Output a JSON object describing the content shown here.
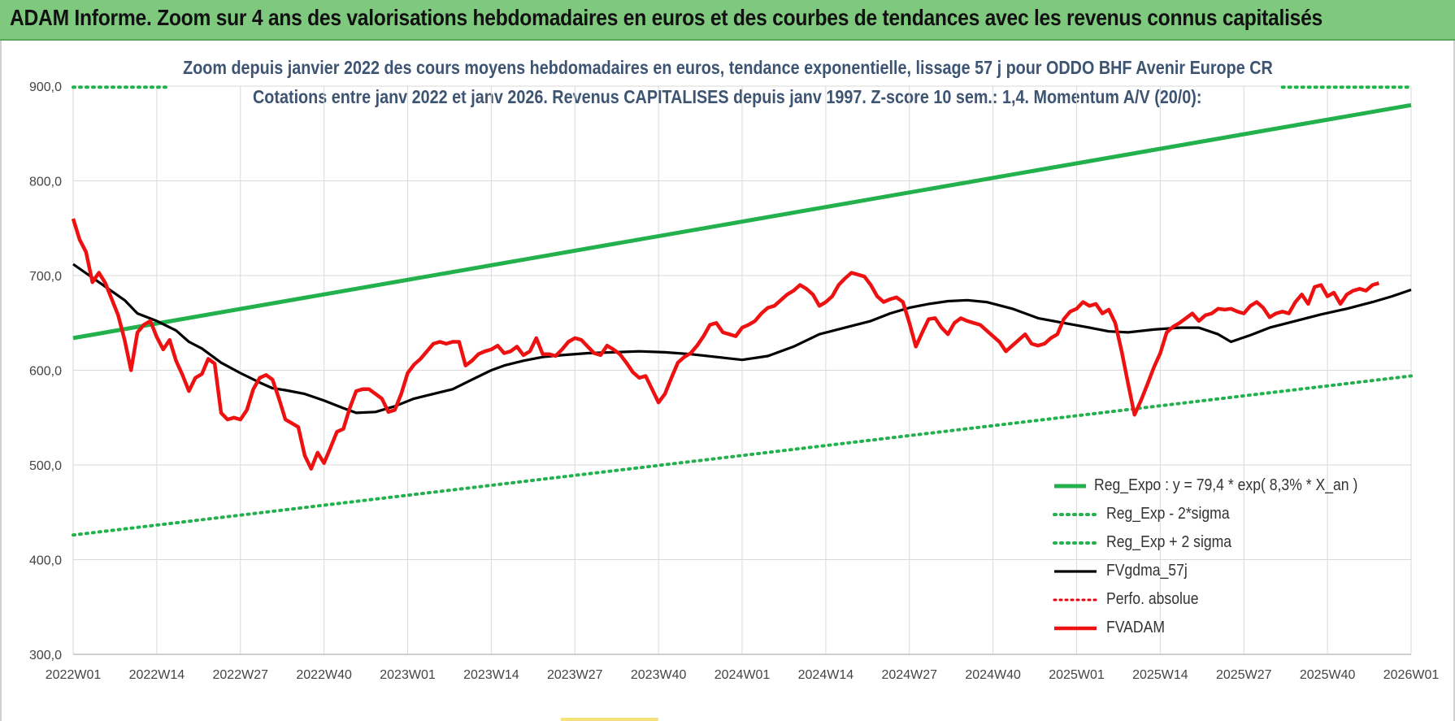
{
  "header": {
    "title": "ADAM Informe. Zoom sur 4 ans des valorisations hebdomadaires en euros et des courbes de tendances avec les revenus connus capitalisés"
  },
  "chart_data": {
    "type": "line",
    "title": "Zoom depuis janvier 2022 des cours moyens hebdomadaires en euros, tendance exponentielle, lissage 57 j pour ODDO BHF Avenir Europe CR",
    "subtitle": "Cotations entre janv 2022 et janv 2026. Revenus CAPITALISES depuis janv 1997. Z-score 10 sem.: 1,4. Momentum A/V (20/0):",
    "xlabel": "",
    "ylabel": "",
    "ylim": [
      300,
      900
    ],
    "yticks": [
      "300,0",
      "400,0",
      "500,0",
      "600,0",
      "700,0",
      "800,0",
      "900,0"
    ],
    "xticks": [
      "2022W01",
      "2022W14",
      "2022W27",
      "2022W40",
      "2023W01",
      "2023W14",
      "2023W27",
      "2023W40",
      "2024W01",
      "2024W14",
      "2024W27",
      "2024W40",
      "2025W01",
      "2025W14",
      "2025W27",
      "2025W40",
      "2026W01"
    ],
    "grid": true,
    "legend_position": "bottom-right",
    "series": [
      {
        "name": "Reg_Expo : y = 79,4 * exp( 8,3% *  X_an )",
        "color": "#22b14c",
        "style": "solid",
        "points": [
          [
            0,
            634
          ],
          [
            208,
            880
          ]
        ]
      },
      {
        "name": "Reg_Exp - 2*sigma",
        "color": "#22b14c",
        "style": "dotted",
        "points": [
          [
            0,
            426
          ],
          [
            208,
            594
          ]
        ]
      },
      {
        "name": "Reg_Exp + 2 sigma",
        "color": "#22b14c",
        "style": "dotted",
        "points": [
          [
            0,
            899
          ],
          [
            15,
            899
          ]
        ],
        "points2": [
          [
            188,
            899
          ],
          [
            208,
            899
          ]
        ]
      },
      {
        "name": "FVgdma_57j",
        "color": "#000000",
        "style": "solid",
        "points": [
          [
            0,
            712
          ],
          [
            4,
            693
          ],
          [
            8,
            674
          ],
          [
            10,
            660
          ],
          [
            13,
            652
          ],
          [
            16,
            642
          ],
          [
            18,
            630
          ],
          [
            20,
            623
          ],
          [
            23,
            608
          ],
          [
            26,
            597
          ],
          [
            29,
            587
          ],
          [
            31,
            581
          ],
          [
            33,
            579
          ],
          [
            36,
            575
          ],
          [
            39,
            568
          ],
          [
            42,
            560
          ],
          [
            44,
            555
          ],
          [
            47,
            556
          ],
          [
            50,
            562
          ],
          [
            53,
            570
          ],
          [
            56,
            575
          ],
          [
            59,
            580
          ],
          [
            62,
            590
          ],
          [
            65,
            600
          ],
          [
            67,
            605
          ],
          [
            70,
            610
          ],
          [
            73,
            614
          ],
          [
            76,
            616
          ],
          [
            80,
            618
          ],
          [
            84,
            619
          ],
          [
            88,
            620
          ],
          [
            92,
            619
          ],
          [
            96,
            617
          ],
          [
            100,
            614
          ],
          [
            104,
            611
          ],
          [
            108,
            615
          ],
          [
            112,
            625
          ],
          [
            116,
            638
          ],
          [
            120,
            645
          ],
          [
            124,
            652
          ],
          [
            127,
            660
          ],
          [
            130,
            666
          ],
          [
            133,
            670
          ],
          [
            136,
            673
          ],
          [
            139,
            674
          ],
          [
            142,
            672
          ],
          [
            146,
            665
          ],
          [
            150,
            655
          ],
          [
            154,
            650
          ],
          [
            158,
            645
          ],
          [
            161,
            641
          ],
          [
            164,
            640
          ],
          [
            168,
            643
          ],
          [
            172,
            645
          ],
          [
            175,
            645
          ],
          [
            178,
            638
          ],
          [
            180,
            630
          ],
          [
            183,
            637
          ],
          [
            186,
            645
          ],
          [
            190,
            652
          ],
          [
            194,
            659
          ],
          [
            198,
            665
          ],
          [
            202,
            672
          ],
          [
            205,
            678
          ],
          [
            208,
            685
          ]
        ]
      },
      {
        "name": "Perfo. absolue",
        "color": "#e8000b",
        "style": "dotted",
        "points": []
      },
      {
        "name": "FVADAM",
        "color": "#ee1111",
        "style": "solid",
        "points": [
          [
            0,
            760
          ],
          [
            1,
            738
          ],
          [
            2,
            725
          ],
          [
            3,
            693
          ],
          [
            4,
            703
          ],
          [
            5,
            692
          ],
          [
            6,
            675
          ],
          [
            7,
            658
          ],
          [
            8,
            632
          ],
          [
            9,
            600
          ],
          [
            10,
            640
          ],
          [
            11,
            648
          ],
          [
            12,
            652
          ],
          [
            13,
            635
          ],
          [
            14,
            622
          ],
          [
            15,
            632
          ],
          [
            16,
            610
          ],
          [
            17,
            595
          ],
          [
            18,
            578
          ],
          [
            19,
            592
          ],
          [
            20,
            596
          ],
          [
            21,
            612
          ],
          [
            22,
            607
          ],
          [
            23,
            555
          ],
          [
            24,
            548
          ],
          [
            25,
            550
          ],
          [
            26,
            548
          ],
          [
            27,
            558
          ],
          [
            28,
            580
          ],
          [
            29,
            592
          ],
          [
            30,
            595
          ],
          [
            31,
            590
          ],
          [
            32,
            570
          ],
          [
            33,
            548
          ],
          [
            34,
            544
          ],
          [
            35,
            540
          ],
          [
            36,
            510
          ],
          [
            37,
            496
          ],
          [
            38,
            513
          ],
          [
            39,
            502
          ],
          [
            40,
            518
          ],
          [
            41,
            535
          ],
          [
            42,
            538
          ],
          [
            43,
            560
          ],
          [
            44,
            578
          ],
          [
            45,
            580
          ],
          [
            46,
            580
          ],
          [
            47,
            575
          ],
          [
            48,
            570
          ],
          [
            49,
            556
          ],
          [
            50,
            558
          ],
          [
            51,
            575
          ],
          [
            52,
            597
          ],
          [
            53,
            606
          ],
          [
            54,
            612
          ],
          [
            55,
            620
          ],
          [
            56,
            628
          ],
          [
            57,
            630
          ],
          [
            58,
            628
          ],
          [
            59,
            630
          ],
          [
            60,
            630
          ],
          [
            61,
            605
          ],
          [
            62,
            610
          ],
          [
            63,
            617
          ],
          [
            64,
            620
          ],
          [
            65,
            622
          ],
          [
            66,
            626
          ],
          [
            67,
            618
          ],
          [
            68,
            620
          ],
          [
            69,
            625
          ],
          [
            70,
            616
          ],
          [
            71,
            620
          ],
          [
            72,
            634
          ],
          [
            73,
            617
          ],
          [
            74,
            617
          ],
          [
            75,
            615
          ],
          [
            76,
            622
          ],
          [
            77,
            630
          ],
          [
            78,
            634
          ],
          [
            79,
            632
          ],
          [
            80,
            625
          ],
          [
            81,
            618
          ],
          [
            82,
            616
          ],
          [
            83,
            626
          ],
          [
            84,
            622
          ],
          [
            85,
            617
          ],
          [
            86,
            608
          ],
          [
            87,
            598
          ],
          [
            88,
            592
          ],
          [
            89,
            594
          ],
          [
            90,
            580
          ],
          [
            91,
            566
          ],
          [
            92,
            575
          ],
          [
            93,
            592
          ],
          [
            94,
            608
          ],
          [
            95,
            614
          ],
          [
            96,
            618
          ],
          [
            97,
            626
          ],
          [
            98,
            636
          ],
          [
            99,
            648
          ],
          [
            100,
            650
          ],
          [
            101,
            640
          ],
          [
            102,
            638
          ],
          [
            103,
            636
          ],
          [
            104,
            645
          ],
          [
            105,
            648
          ],
          [
            106,
            652
          ],
          [
            107,
            660
          ],
          [
            108,
            666
          ],
          [
            109,
            668
          ],
          [
            110,
            674
          ],
          [
            111,
            680
          ],
          [
            112,
            684
          ],
          [
            113,
            690
          ],
          [
            114,
            686
          ],
          [
            115,
            680
          ],
          [
            116,
            668
          ],
          [
            117,
            672
          ],
          [
            118,
            678
          ],
          [
            119,
            690
          ],
          [
            120,
            697
          ],
          [
            121,
            703
          ],
          [
            122,
            701
          ],
          [
            123,
            699
          ],
          [
            124,
            690
          ],
          [
            125,
            678
          ],
          [
            126,
            672
          ],
          [
            127,
            675
          ],
          [
            128,
            677
          ],
          [
            129,
            672
          ],
          [
            130,
            650
          ],
          [
            131,
            625
          ],
          [
            132,
            640
          ],
          [
            133,
            654
          ],
          [
            134,
            655
          ],
          [
            135,
            645
          ],
          [
            136,
            638
          ],
          [
            137,
            650
          ],
          [
            138,
            655
          ],
          [
            139,
            652
          ],
          [
            140,
            650
          ],
          [
            141,
            648
          ],
          [
            142,
            642
          ],
          [
            143,
            636
          ],
          [
            144,
            630
          ],
          [
            145,
            620
          ],
          [
            146,
            626
          ],
          [
            147,
            632
          ],
          [
            148,
            638
          ],
          [
            149,
            628
          ],
          [
            150,
            626
          ],
          [
            151,
            628
          ],
          [
            152,
            634
          ],
          [
            153,
            638
          ],
          [
            154,
            654
          ],
          [
            155,
            662
          ],
          [
            156,
            665
          ],
          [
            157,
            672
          ],
          [
            158,
            668
          ],
          [
            159,
            670
          ],
          [
            160,
            660
          ],
          [
            161,
            664
          ],
          [
            162,
            650
          ],
          [
            163,
            620
          ],
          [
            164,
            586
          ],
          [
            165,
            553
          ],
          [
            166,
            568
          ],
          [
            167,
            585
          ],
          [
            168,
            603
          ],
          [
            169,
            618
          ],
          [
            170,
            640
          ],
          [
            171,
            646
          ],
          [
            172,
            650
          ],
          [
            173,
            655
          ],
          [
            174,
            660
          ],
          [
            175,
            652
          ],
          [
            176,
            658
          ],
          [
            177,
            660
          ],
          [
            178,
            665
          ],
          [
            179,
            664
          ],
          [
            180,
            665
          ],
          [
            181,
            662
          ],
          [
            182,
            660
          ],
          [
            183,
            668
          ],
          [
            184,
            672
          ],
          [
            185,
            666
          ],
          [
            186,
            656
          ],
          [
            187,
            660
          ],
          [
            188,
            662
          ],
          [
            189,
            660
          ],
          [
            190,
            672
          ],
          [
            191,
            680
          ],
          [
            192,
            670
          ],
          [
            193,
            688
          ],
          [
            194,
            690
          ],
          [
            195,
            678
          ],
          [
            196,
            682
          ],
          [
            197,
            670
          ],
          [
            198,
            680
          ],
          [
            199,
            684
          ],
          [
            200,
            686
          ],
          [
            201,
            684
          ],
          [
            202,
            690
          ],
          [
            203,
            692
          ]
        ]
      }
    ]
  },
  "colors": {
    "banner": "#7fc97f",
    "subtitle": "#3d5472",
    "grid": "#d9d9d9",
    "axis_text": "#444444"
  }
}
